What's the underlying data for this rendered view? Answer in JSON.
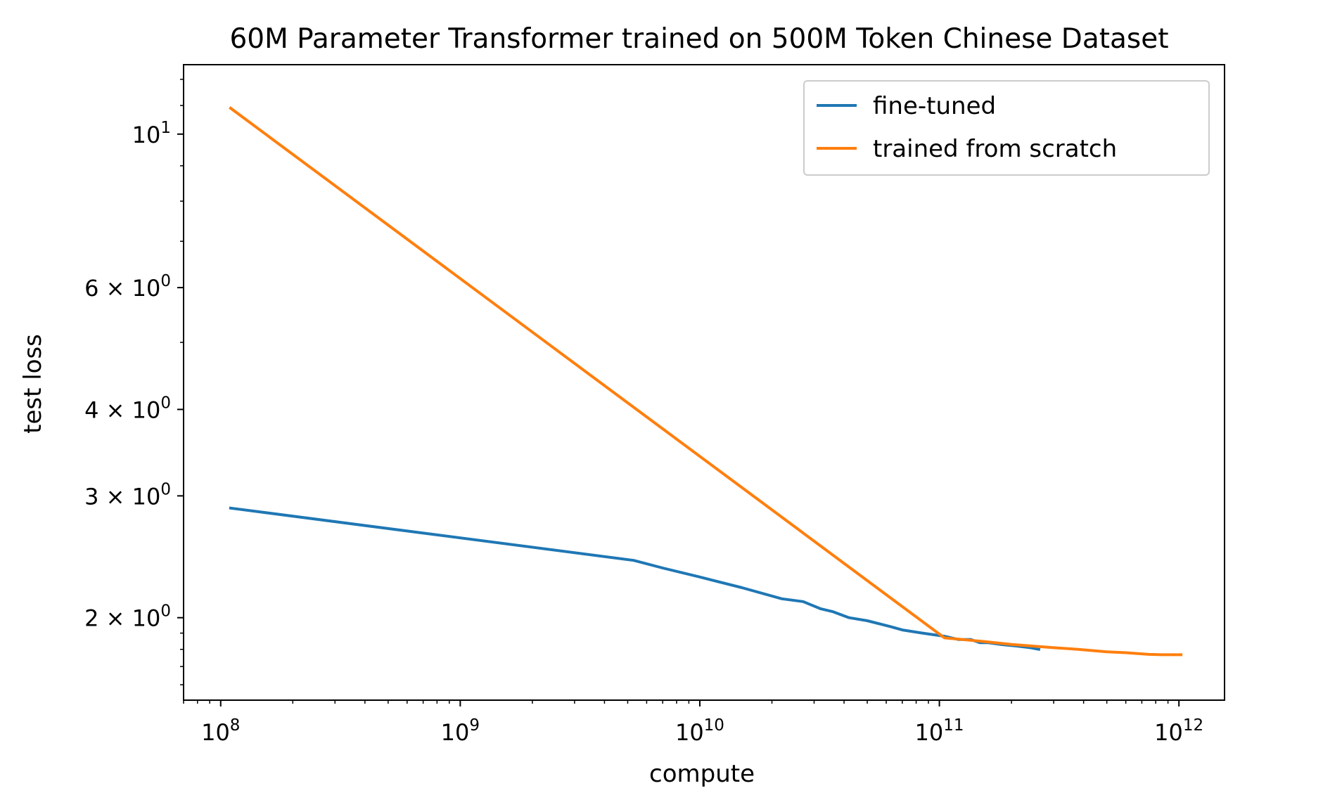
{
  "chart_data": {
    "type": "line",
    "title": "60M Parameter Transformer trained on 500M Token Chinese Dataset",
    "xlabel": "compute",
    "ylabel": "test loss",
    "xscale": "log",
    "yscale": "log",
    "xlim": [
      70000000.0,
      1550000000000.0
    ],
    "ylim": [
      1.52,
      12.6
    ],
    "x_ticks": [
      {
        "value": 100000000.0,
        "base": "10",
        "exp": "8"
      },
      {
        "value": 1000000000.0,
        "base": "10",
        "exp": "9"
      },
      {
        "value": 10000000000.0,
        "base": "10",
        "exp": "10"
      },
      {
        "value": 100000000000.0,
        "base": "10",
        "exp": "11"
      },
      {
        "value": 1000000000000.0,
        "base": "10",
        "exp": "12"
      }
    ],
    "y_ticks": [
      {
        "value": 10,
        "mant": "",
        "base": "10",
        "exp": "1"
      },
      {
        "value": 6,
        "mant": "6 × ",
        "base": "10",
        "exp": "0"
      },
      {
        "value": 4,
        "mant": "4 × ",
        "base": "10",
        "exp": "0"
      },
      {
        "value": 3,
        "mant": "3 × ",
        "base": "10",
        "exp": "0"
      },
      {
        "value": 2,
        "mant": "2 × ",
        "base": "10",
        "exp": "0"
      }
    ],
    "legend_position": "top-right",
    "grid": false,
    "series": [
      {
        "name": "fine-tuned",
        "color": "#1f77b4",
        "points": [
          [
            110000000.0,
            2.88
          ],
          [
            5300000000.0,
            2.42
          ],
          [
            7000000000.0,
            2.36
          ],
          [
            10000000000.0,
            2.29
          ],
          [
            15000000000.0,
            2.21
          ],
          [
            22000000000.0,
            2.13
          ],
          [
            27000000000.0,
            2.11
          ],
          [
            32000000000.0,
            2.06
          ],
          [
            36000000000.0,
            2.04
          ],
          [
            42000000000.0,
            2.0
          ],
          [
            50000000000.0,
            1.98
          ],
          [
            63000000000.0,
            1.94
          ],
          [
            70000000000.0,
            1.92
          ],
          [
            85000000000.0,
            1.9
          ],
          [
            105000000000.0,
            1.88
          ],
          [
            120000000000.0,
            1.86
          ],
          [
            135000000000.0,
            1.86
          ],
          [
            148000000000.0,
            1.84
          ],
          [
            160000000000.0,
            1.84
          ],
          [
            180000000000.0,
            1.83
          ],
          [
            210000000000.0,
            1.82
          ],
          [
            240000000000.0,
            1.81
          ],
          [
            260000000000.0,
            1.8
          ]
        ]
      },
      {
        "name": "trained from scratch",
        "color": "#ff7f0e",
        "points": [
          [
            110000000.0,
            10.9
          ],
          [
            105000000000.0,
            1.87
          ],
          [
            160000000000.0,
            1.845
          ],
          [
            200000000000.0,
            1.83
          ],
          [
            300000000000.0,
            1.81
          ],
          [
            380000000000.0,
            1.8
          ],
          [
            500000000000.0,
            1.785
          ],
          [
            600000000000.0,
            1.78
          ],
          [
            750000000000.0,
            1.77
          ],
          [
            850000000000.0,
            1.768
          ],
          [
            1020000000000.0,
            1.768
          ]
        ]
      }
    ]
  }
}
